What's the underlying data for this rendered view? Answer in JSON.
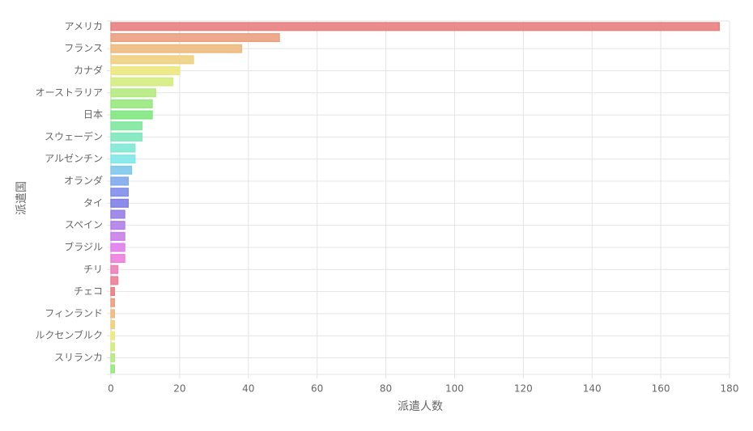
{
  "chart_data": {
    "type": "hbar",
    "x_label": "派遣人数",
    "y_label": "派遣国",
    "categories": [
      "アメリカ",
      null,
      "フランス",
      null,
      "カナダ",
      null,
      "オーストラリア",
      null,
      "日本",
      null,
      "スウェーデン",
      null,
      "アルゼンチン",
      null,
      "オランダ",
      null,
      "タイ",
      null,
      "スペイン",
      null,
      "ブラジル",
      null,
      "チリ",
      null,
      "チェコ",
      null,
      "フィンランド",
      null,
      "ルクセンブルク",
      null,
      "スリランカ",
      null
    ],
    "values": [
      177,
      49,
      38,
      24,
      20,
      18,
      13,
      12,
      12,
      9,
      9,
      7,
      7,
      6,
      5,
      5,
      5,
      4,
      4,
      4,
      4,
      4,
      2,
      2,
      1,
      1,
      1,
      1,
      1,
      1,
      1,
      1
    ],
    "colors": [
      "#e88080",
      "#eba080",
      "#edbb80",
      "#efd07f",
      "#ece880",
      "#d4ec80",
      "#b5ea80",
      "#98e880",
      "#80e880",
      "#80e8a0",
      "#80e8bc",
      "#80e8d4",
      "#80e8e8",
      "#80c8ec",
      "#80aaec",
      "#808eec",
      "#8080e8",
      "#9880e8",
      "#b080e8",
      "#c880e8",
      "#e080ec",
      "#ec80dc",
      "#ec80b8",
      "#ec8098",
      "#e88080",
      "#eba080",
      "#edbb80",
      "#efd07f",
      "#ece880",
      "#d4ec80",
      "#b5ea80",
      "#98e880"
    ],
    "xlim": [
      0,
      180
    ],
    "xticks": [
      0,
      20,
      40,
      60,
      80,
      100,
      120,
      140,
      160,
      180
    ],
    "grid": true
  }
}
